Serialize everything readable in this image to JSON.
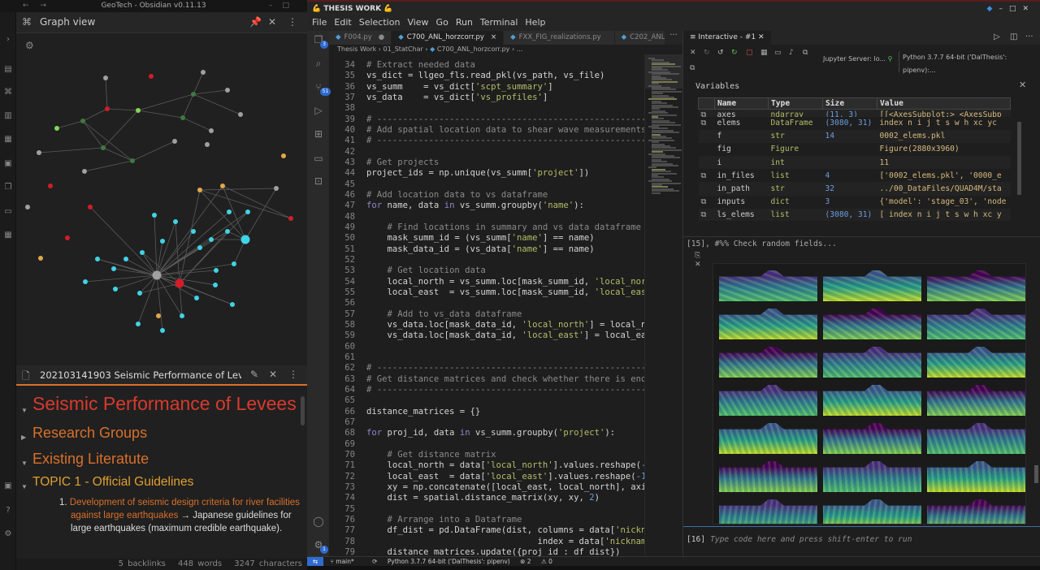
{
  "obsidian": {
    "window_title": "GeoTech - Obsidian v0.11.13",
    "graph_title": "Graph view",
    "note_tab_title": "202103141903 Seismic Performance of Levees",
    "note": {
      "h1": "Seismic Performance of Levees",
      "h2a": "Research Groups",
      "h2b": "Existing Literatute",
      "h3": "TOPIC 1 - Official Guidelines",
      "list_num": "1.",
      "list_link": "Development of seismic design criteria for river facilities against large earthquakes",
      "list_text": " → Japanese guidelines for large earthquakes (maximum credible earthquake)."
    },
    "status": {
      "backlinks": "5 backlinks",
      "words": "448 words",
      "chars": "3247 characters"
    },
    "graph_colors": {
      "grey": "#a0a0a0",
      "red": "#d21c28",
      "green": "#7ed957",
      "dark_green": "#3e7a3e",
      "cyan": "#3fd4e6",
      "gold": "#e0a848"
    }
  },
  "vscode": {
    "window_title": "💪 THESIS WORK 💪",
    "menu": [
      "File",
      "Edit",
      "Selection",
      "View",
      "Go",
      "Run",
      "Terminal",
      "Help"
    ],
    "explorer_badge": "3",
    "source_control_badge": "51",
    "settings_badge": "1",
    "tabs": [
      {
        "label": "F004.py",
        "state": "● "
      },
      {
        "label": "C700_ANL_horzcorr.py",
        "state": "×"
      },
      {
        "label": "FXX_FIG_realizations.py",
        "state": ""
      },
      {
        "label": "C202_ANL_Stage02_ch",
        "state": ""
      }
    ],
    "breadcrumb": [
      "Thesis Work",
      "01_StatChar",
      "C700_ANL_horzcorr.py",
      "..."
    ],
    "code_start_line": 34,
    "code": [
      "# Extract needed data",
      "vs_dict = llgeo_fls.read_pkl(vs_path, vs_file)",
      "vs_summ    = vs_dict['scpt_summary']",
      "vs_data    = vs_dict['vs_profiles']",
      "",
      "# -----------------------------------------------------------------",
      "# Add spatial location data to shear wave measurements",
      "# -----------------------------------------------------------------",
      "",
      "# Get projects",
      "project_ids = np.unique(vs_summ['project'])",
      "",
      "# Add location data to vs dataframe",
      "for name, data in vs_summ.groupby('name'):",
      "",
      "    # Find locations in summary and vs data dataframe",
      "    mask_summ_id = (vs_summ['name'] == name)",
      "    mask_data_id = (vs_data['name'] == name)",
      "",
      "    # Get location data",
      "    local_north = vs_summ.loc[mask_summ_id, 'local_north']",
      "    local_east  = vs_summ.loc[mask_summ_id, 'local_east']",
      "",
      "    # Add to vs_data dataframe",
      "    vs_data.loc[mask_data_id, 'local_north'] = local_north",
      "    vs_data.loc[mask_data_id, 'local_east'] = local_east",
      "",
      "",
      "# -----------------------------------------------------------------",
      "# Get distance matrices and check whether there is enough",
      "# -----------------------------------------------------------------",
      "",
      "distance_matrices = {}",
      "",
      "for proj_id, data in vs_summ.groupby('project'):",
      "",
      "    # Get distance matrix",
      "    local_north = data['local_north'].values.reshape(-1, 1)",
      "    local_east  = data['local_east'].values.reshape(-1, 1)",
      "    xy = np.concatenate([local_east, local_north], axis = 1)",
      "    dist = spatial.distance_matrix(xy, xy, 2)",
      "",
      "    # Arrange into a Dataframe",
      "    df_dist = pd.DataFrame(dist, columns = data['nickname'],",
      "                                 index = data['nickname'])",
      "    distance_matrices.update({proj_id : df_dist})"
    ],
    "interactive": {
      "tab_label": "Interactive - #1",
      "kernel": "Jupyter Server: lo...",
      "python_env": "Python 3.7.7 64-bit ('DalThesis': pipenv):...",
      "variables_title": "Variables",
      "columns": [
        "Name",
        "Type",
        "Size",
        "Value"
      ],
      "rows": [
        [
          "axes",
          "ndarray",
          "(11, 3)",
          "[[<AxesSubplot:> <AxesSubp"
        ],
        [
          "elems",
          "DataFrame",
          "(3080, 31)",
          "index n i j t s w h xc yc"
        ],
        [
          "f",
          "str",
          "14",
          "0002_elems.pkl"
        ],
        [
          "fig",
          "Figure",
          "",
          "Figure(2880x3960)"
        ],
        [
          "i",
          "int",
          "",
          "11"
        ],
        [
          "in_files",
          "list",
          "4",
          "['0002_elems.pkl', '0000_e"
        ],
        [
          "in_path",
          "str",
          "32",
          "../00_DataFiles/QUAD4M/sta"
        ],
        [
          "inputs",
          "dict",
          "3",
          "{'model': 'stage_03', 'node"
        ],
        [
          "ls_elems",
          "list",
          "(3080, 31)",
          "[ index n i j t s w h xc y"
        ]
      ],
      "expandable_rows": [
        0,
        1,
        5,
        7,
        8
      ],
      "cell_15": "[15], #%% Check random fields...",
      "input_prompt": "[16]",
      "input_placeholder": "Type code here and press shift-enter to run"
    },
    "status": {
      "branch": "main*",
      "python": "Python 3.7.7 64-bit ('DalThesis': pipenv)",
      "errors": "⊗ 2",
      "warnings": "⚠ 0"
    }
  }
}
